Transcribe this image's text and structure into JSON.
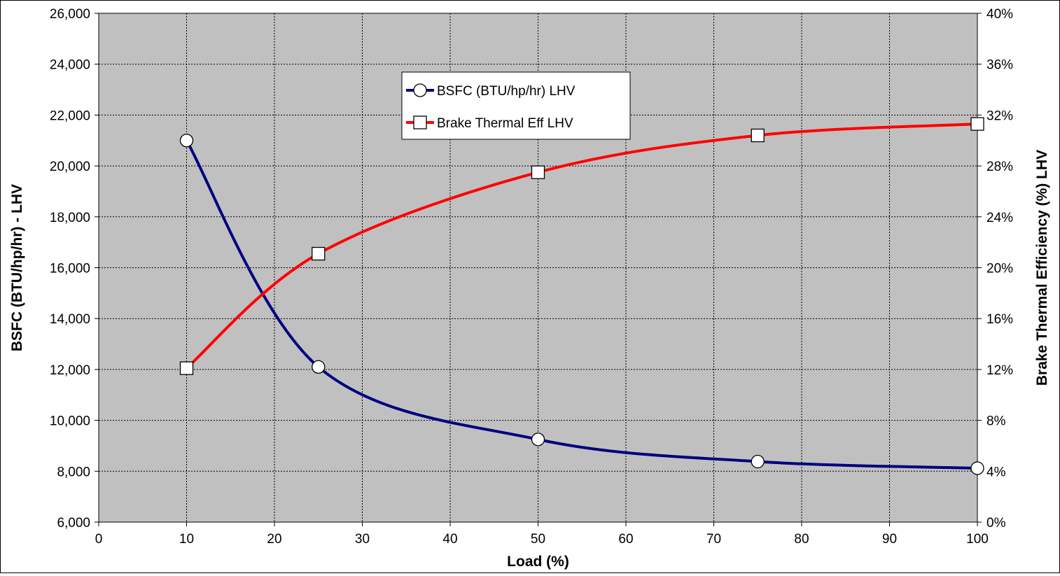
{
  "chart_data": {
    "type": "line",
    "x": [
      10,
      25,
      50,
      75,
      100
    ],
    "xlabel": "Load (%)",
    "xlim": [
      0,
      100
    ],
    "x_ticks": [
      "0",
      "10",
      "20",
      "30",
      "40",
      "50",
      "60",
      "70",
      "80",
      "90",
      "100"
    ],
    "ylabel": "BSFC (BTU/hp/hr) - LHV",
    "ylim": [
      6000,
      26000
    ],
    "y_ticks": [
      "6,000",
      "8,000",
      "10,000",
      "12,000",
      "14,000",
      "16,000",
      "18,000",
      "20,000",
      "22,000",
      "24,000",
      "26,000"
    ],
    "y2label": "Brake Thermal Efficiency (%) LHV",
    "y2lim": [
      0,
      40
    ],
    "y2_ticks": [
      "0%",
      "4%",
      "8%",
      "12%",
      "16%",
      "20%",
      "24%",
      "28%",
      "32%",
      "36%",
      "40%"
    ],
    "grid": true,
    "plot_background": "#c0c0c0",
    "legend_position": "top-center",
    "series": [
      {
        "name": "BSFC (BTU/hp/hr) LHV",
        "axis": "left",
        "color": "#000080",
        "marker": "circle",
        "values": [
          21000,
          12100,
          9250,
          8380,
          8120
        ]
      },
      {
        "name": "Brake Thermal Eff LHV",
        "axis": "right",
        "color": "#ff0000",
        "marker": "square",
        "values": [
          12.1,
          21.1,
          27.5,
          30.4,
          31.3
        ]
      }
    ]
  }
}
